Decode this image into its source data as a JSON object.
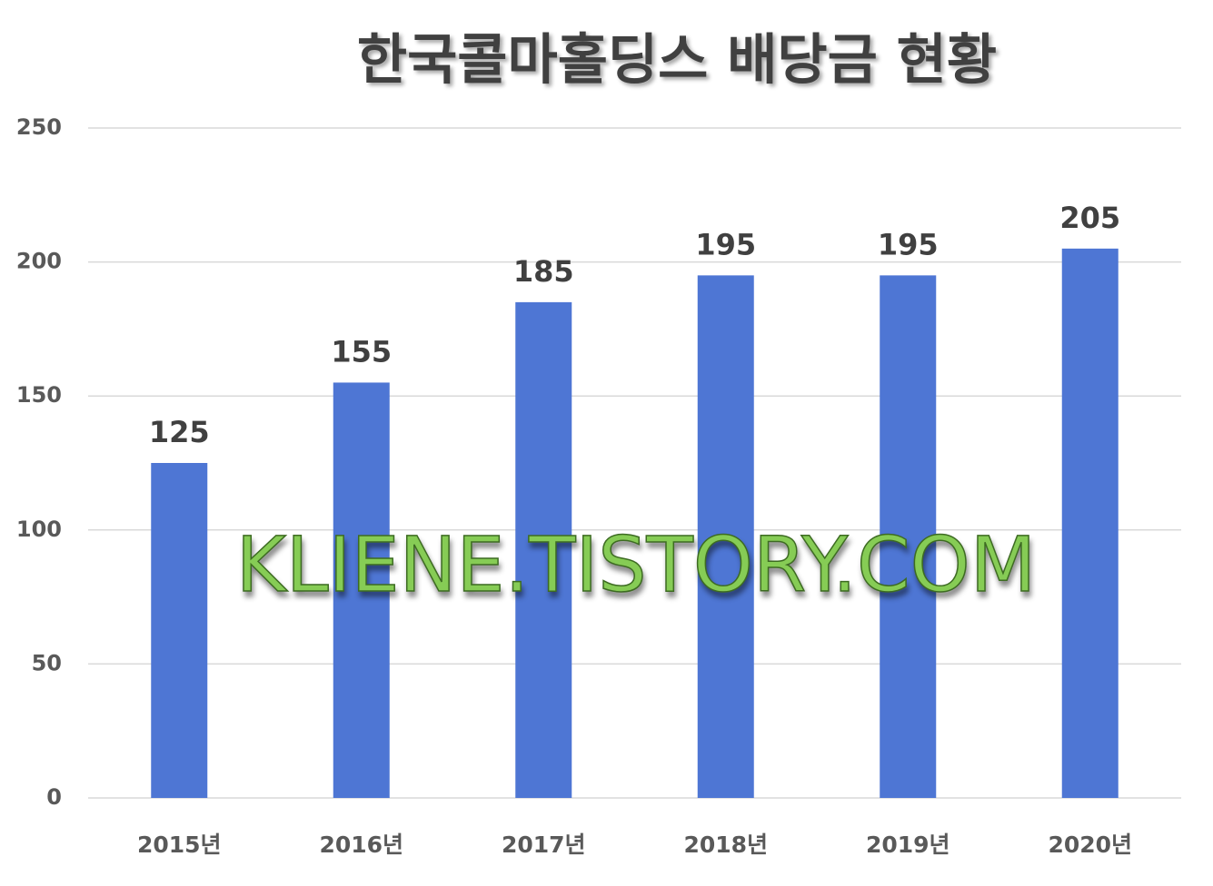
{
  "chart_data": {
    "type": "bar",
    "title": "한국콜마홀딩스 배당금 현황",
    "categories": [
      "2015년",
      "2016년",
      "2017년",
      "2018년",
      "2019년",
      "2020년"
    ],
    "values": [
      125,
      155,
      185,
      195,
      195,
      205
    ],
    "color": "#4e76d4",
    "ylim": [
      0,
      250
    ],
    "yticks": [
      0,
      50,
      100,
      150,
      200,
      250
    ],
    "grid": true,
    "annotation": "KLIENE.TISTORY.COM"
  }
}
